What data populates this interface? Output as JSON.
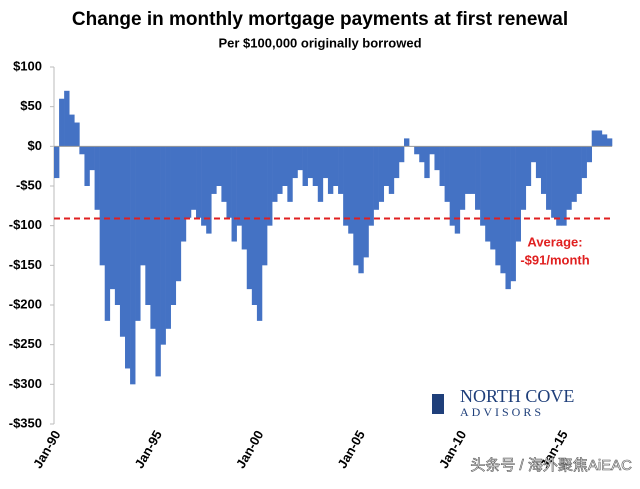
{
  "chart_data": {
    "type": "bar",
    "title": "Change in monthly mortgage payments at first renewal",
    "subtitle": "Per $100,000 originally borrowed",
    "color": "#4472c4",
    "categories": [
      "Jan-90",
      null,
      null,
      null,
      null,
      null,
      null,
      null,
      null,
      null,
      null,
      null,
      null,
      null,
      null,
      null,
      null,
      null,
      null,
      null,
      "Jan-95",
      null,
      null,
      null,
      null,
      null,
      null,
      null,
      null,
      null,
      null,
      null,
      null,
      null,
      null,
      null,
      null,
      null,
      null,
      null,
      "Jan-00",
      null,
      null,
      null,
      null,
      null,
      null,
      null,
      null,
      null,
      null,
      null,
      null,
      null,
      null,
      null,
      null,
      null,
      null,
      null,
      "Jan-05",
      null,
      null,
      null,
      null,
      null,
      null,
      null,
      null,
      null,
      null,
      null,
      null,
      null,
      null,
      null,
      null,
      null,
      null,
      null,
      "Jan-10",
      null,
      null,
      null,
      null,
      null,
      null,
      null,
      null,
      null,
      null,
      null,
      null,
      null,
      null,
      null,
      null,
      null,
      null,
      null,
      "Jan-15",
      null,
      null,
      null,
      null,
      null,
      null,
      null,
      null,
      null
    ],
    "values": [
      -40,
      60,
      70,
      40,
      30,
      -10,
      -50,
      -30,
      -80,
      -150,
      -220,
      -180,
      -200,
      -240,
      -280,
      -300,
      -220,
      -150,
      -200,
      -230,
      -290,
      -250,
      -230,
      -200,
      -170,
      -120,
      -90,
      -80,
      -90,
      -100,
      -110,
      -60,
      -50,
      -70,
      -90,
      -120,
      -100,
      -130,
      -180,
      -200,
      -220,
      -150,
      -100,
      -70,
      -60,
      -50,
      -70,
      -40,
      -30,
      -50,
      -40,
      -50,
      -70,
      -40,
      -60,
      -50,
      -60,
      -100,
      -110,
      -150,
      -160,
      -140,
      -100,
      -80,
      -70,
      -50,
      -60,
      -40,
      -20,
      10,
      0,
      -10,
      -20,
      -40,
      -10,
      -30,
      -50,
      -70,
      -100,
      -110,
      -80,
      -60,
      -60,
      -80,
      -100,
      -120,
      -130,
      -150,
      -160,
      -180,
      -170,
      -120,
      -80,
      -50,
      -20,
      -40,
      -60,
      -80,
      -90,
      -100,
      -100,
      -80,
      -70,
      -60,
      -40,
      -20,
      20,
      20,
      15,
      10
    ],
    "ylim": [
      -350,
      100
    ],
    "yticks": [
      {
        "value": -350,
        "label": "-$350"
      },
      {
        "value": -300,
        "label": "-$300"
      },
      {
        "value": -250,
        "label": "-$250"
      },
      {
        "value": -200,
        "label": "-$200"
      },
      {
        "value": -150,
        "label": "-$150"
      },
      {
        "value": -100,
        "label": "-$100"
      },
      {
        "value": -50,
        "label": "-$50"
      },
      {
        "value": 0,
        "label": "$0"
      },
      {
        "value": 50,
        "label": "$50"
      },
      {
        "value": 100,
        "label": "$100"
      }
    ],
    "average": {
      "value": -91,
      "labels": [
        "Average:",
        "-$91/month"
      ],
      "color": "#e02020"
    },
    "logo": [
      "NORTH COVE",
      "ADVISORS"
    ],
    "watermark": "头条号 / 海外聚焦AiEAC"
  }
}
